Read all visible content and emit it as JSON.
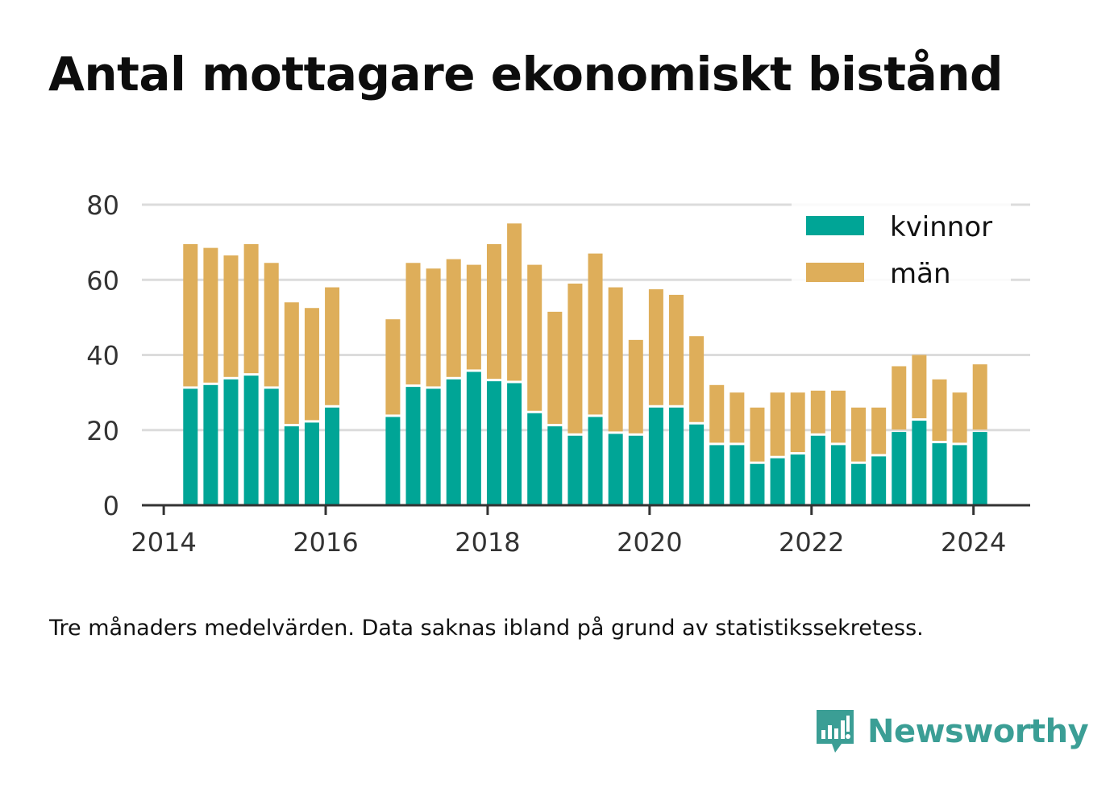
{
  "chart_data": {
    "type": "bar",
    "stacked": true,
    "title": "Antal mottagare ekonomiskt bistånd",
    "caption": "Tre månaders medelvärden. Data saknas ibland på grund av statistikssekretess.",
    "xlabel": "",
    "ylabel": "",
    "xlim": [
      2013.73,
      2024.7
    ],
    "ylim": [
      0,
      80
    ],
    "x_ticks": [
      2014,
      2016,
      2018,
      2020,
      2022,
      2024
    ],
    "y_ticks": [
      0,
      20,
      40,
      60,
      80
    ],
    "grid": true,
    "legend_position": "top-right",
    "x": [
      2014.33,
      2014.58,
      2014.83,
      2015.08,
      2015.33,
      2015.58,
      2015.83,
      2016.08,
      2016.33,
      2016.58,
      2016.83,
      2017.08,
      2017.33,
      2017.58,
      2017.83,
      2018.08,
      2018.33,
      2018.58,
      2018.83,
      2019.08,
      2019.33,
      2019.58,
      2019.83,
      2020.08,
      2020.33,
      2020.58,
      2020.83,
      2021.08,
      2021.33,
      2021.58,
      2021.83,
      2022.08,
      2022.33,
      2022.58,
      2022.83,
      2023.08,
      2023.33,
      2023.58,
      2023.83,
      2024.08
    ],
    "series": [
      {
        "name": "kvinnor",
        "color": "#00a596",
        "values": [
          31,
          32,
          33.5,
          34.5,
          31,
          21,
          22,
          26,
          null,
          null,
          23.5,
          31.5,
          31,
          33.5,
          35.5,
          33,
          32.5,
          24.5,
          21,
          18.5,
          23.5,
          19,
          18.5,
          26,
          26,
          21.5,
          16,
          16,
          11,
          12.5,
          13.5,
          18.5,
          16,
          11,
          13,
          19.5,
          22.5,
          16.5,
          16,
          19.5
        ]
      },
      {
        "name": "män",
        "color": "#deae5a",
        "values": [
          38.5,
          36.5,
          33,
          35,
          33.5,
          33,
          30.5,
          32,
          null,
          null,
          26,
          33,
          32,
          32,
          28.5,
          36.5,
          42.5,
          39.5,
          30.5,
          40.5,
          43.5,
          39,
          25.5,
          31.5,
          30,
          23.5,
          16,
          14,
          15,
          17.5,
          16.5,
          12,
          14.5,
          15,
          13,
          17.5,
          17.5,
          17,
          14,
          18
        ]
      }
    ]
  },
  "brand": {
    "name": "Newsworthy",
    "icon": "newsworthy-logo-icon",
    "color": "#3b9e95"
  }
}
